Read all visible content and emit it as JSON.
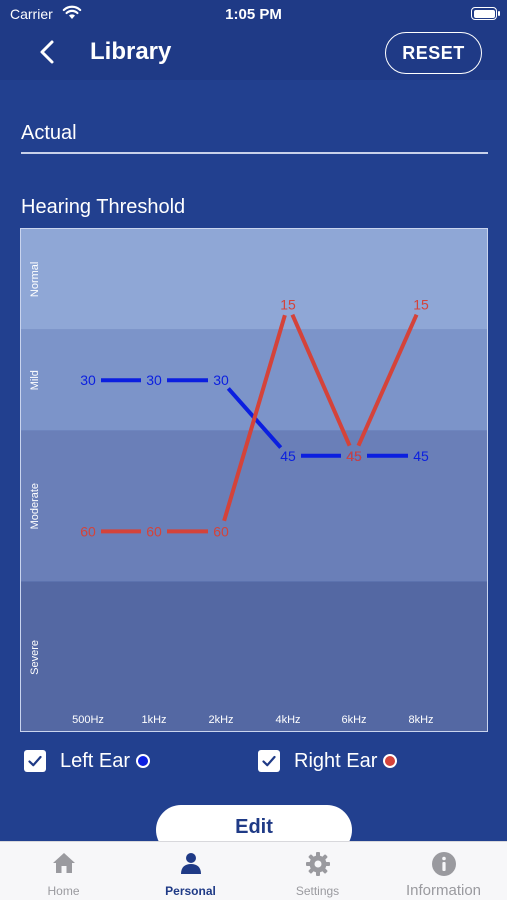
{
  "status_bar": {
    "carrier": "Carrier",
    "time": "1:05 PM"
  },
  "header": {
    "title": "Library",
    "reset_label": "RESET"
  },
  "section": {
    "title": "Actual",
    "chart_heading": "Hearing Threshold"
  },
  "colors": {
    "background": "#22408f",
    "left_ear": "#0b1fe0",
    "right_ear": "#d4433a",
    "band_normal": "#8fa7d6",
    "band_mild": "#7c94c9",
    "band_moderate": "#6a7fb8",
    "band_severe": "#5468a3"
  },
  "chart_data": {
    "type": "line",
    "categories": [
      "500Hz",
      "1kHz",
      "2kHz",
      "4kHz",
      "6kHz",
      "8kHz"
    ],
    "series": [
      {
        "name": "Left Ear",
        "color": "#0b1fe0",
        "values": [
          30,
          30,
          30,
          45,
          45,
          45
        ]
      },
      {
        "name": "Right Ear",
        "color": "#d4433a",
        "values": [
          60,
          60,
          60,
          15,
          45,
          15
        ]
      }
    ],
    "bands": [
      {
        "label": "Normal",
        "from": 0,
        "to": 20
      },
      {
        "label": "Mild",
        "from": 20,
        "to": 40
      },
      {
        "label": "Moderate",
        "from": 40,
        "to": 70
      },
      {
        "label": "Severe",
        "from": 70,
        "to": 100
      }
    ],
    "ylim": [
      0,
      100
    ],
    "y_inverted": true,
    "grid": false,
    "legend": "bottom"
  },
  "legend": {
    "left_label": "Left Ear",
    "right_label": "Right Ear",
    "left_checked": true,
    "right_checked": true
  },
  "actions": {
    "edit_label": "Edit"
  },
  "tabbar": {
    "tabs": [
      {
        "label": "Home",
        "icon": "home-icon"
      },
      {
        "label": "Personal",
        "icon": "person-icon"
      },
      {
        "label": "Settings",
        "icon": "gear-icon"
      },
      {
        "label": "Information",
        "icon": "info-icon"
      }
    ],
    "active": "Personal"
  }
}
